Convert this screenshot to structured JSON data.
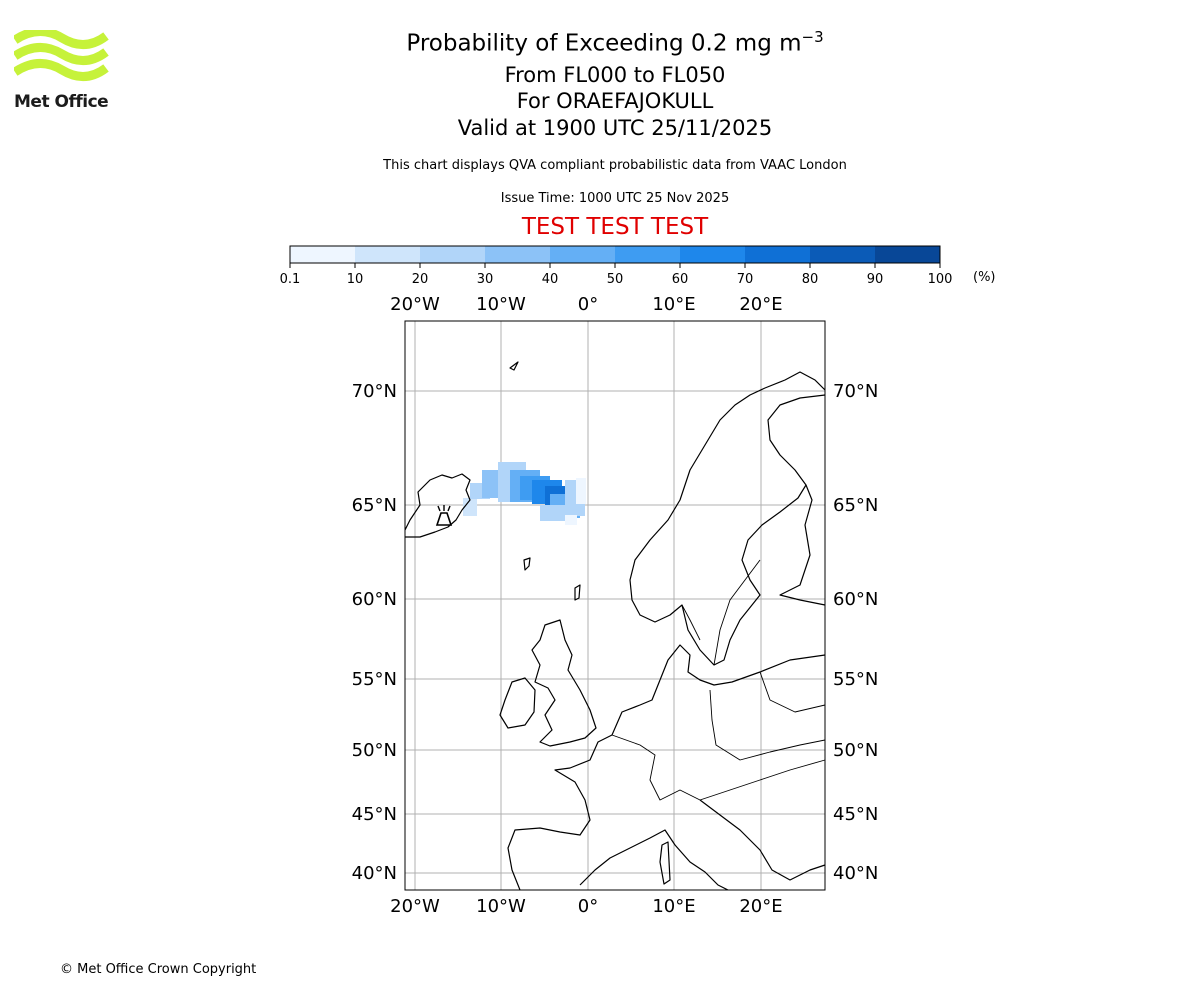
{
  "logo": {
    "brand": "Met Office",
    "accent": "#c6f23a"
  },
  "title": {
    "main_prefix": "Probability of Exceeding 0.2 mg m",
    "main_exponent": "−3",
    "levels": "From FL000 to FL050",
    "volcano": "For ORAEFAJOKULL",
    "valid": "Valid at 1900 UTC 25/11/2025"
  },
  "description": "This chart displays QVA compliant probabilistic data from VAAC London",
  "issue_time": "Issue Time: 1000 UTC 25 Nov 2025",
  "test_banner": {
    "text": "TEST TEST TEST",
    "color": "#e00000"
  },
  "colorbar": {
    "ticks": [
      "0.1",
      "10",
      "20",
      "30",
      "40",
      "50",
      "60",
      "70",
      "80",
      "90",
      "100"
    ],
    "unit": "(%)",
    "colors": [
      "#eef6ff",
      "#cfe5fb",
      "#b1d5f9",
      "#8cc2f7",
      "#64aff5",
      "#3e9cf2",
      "#1e87eb",
      "#0f70d6",
      "#0b5bb7",
      "#084797",
      "#05305f"
    ]
  },
  "map": {
    "lon_labels": [
      "20°W",
      "10°W",
      "0°",
      "10°E",
      "20°E"
    ],
    "lat_labels": [
      "70°N",
      "65°N",
      "60°N",
      "55°N",
      "50°N",
      "45°N",
      "40°N"
    ],
    "gridline_color": "#b0b0b0",
    "coast_color": "#000000"
  },
  "copyright": "© Met Office Crown Copyright"
}
